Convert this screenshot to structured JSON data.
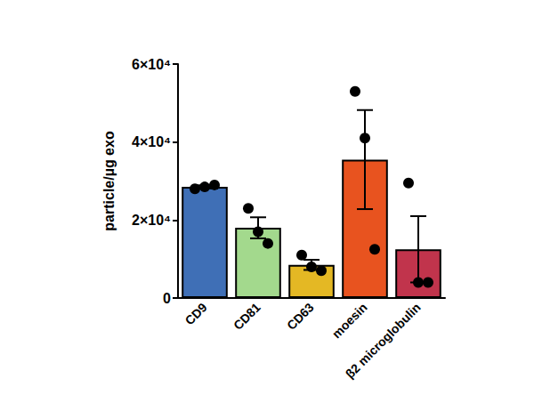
{
  "chart_data": {
    "type": "bar",
    "y_label": "particle/µg exo",
    "categories": [
      "CD9",
      "CD81",
      "CD63",
      "moesin",
      "β2 microglobulin"
    ],
    "values": [
      28500,
      18000,
      8500,
      35500,
      12500
    ],
    "errors": [
      400,
      2700,
      1300,
      12700,
      8500
    ],
    "points": [
      [
        28000,
        28500,
        29000
      ],
      [
        23000,
        17000,
        14000
      ],
      [
        11000,
        8000,
        7000
      ],
      [
        53000,
        41000,
        12500
      ],
      [
        29500,
        4000,
        4000
      ]
    ],
    "colors": [
      "#3f6fb6",
      "#a3d98d",
      "#e4b824",
      "#e8531f",
      "#c1344c"
    ],
    "ylim": [
      0,
      60000
    ],
    "yticks": [
      0,
      {
        "value": 20000,
        "label": "2×10⁴"
      },
      {
        "value": 40000,
        "label": "4×10⁴"
      },
      {
        "value": 60000,
        "label": "6×10⁴"
      }
    ],
    "grid": false
  }
}
